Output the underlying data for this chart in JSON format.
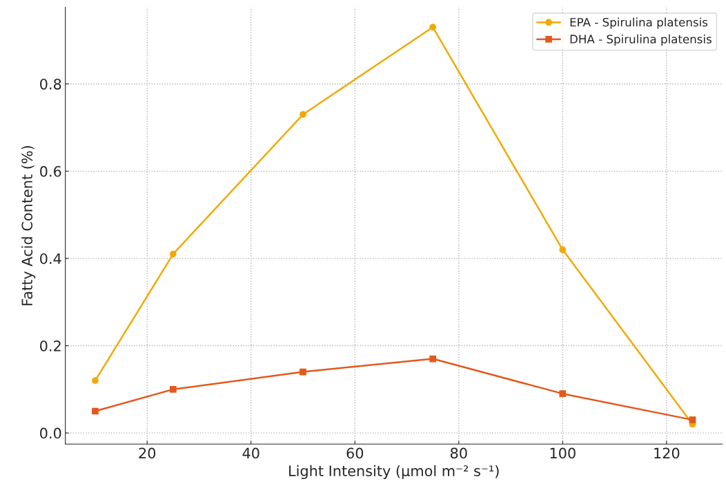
{
  "chart_data": {
    "type": "line",
    "xlabel": "Light Intensity (µmol m⁻² s⁻¹)",
    "ylabel": "Fatty Acid Content (%)",
    "x": [
      10,
      25,
      50,
      75,
      100,
      125
    ],
    "series": [
      {
        "name": "EPA - Spirulina platensis",
        "color": "#f2a900",
        "marker": "circle",
        "values": [
          0.12,
          0.41,
          0.73,
          0.93,
          0.42,
          0.02
        ]
      },
      {
        "name": "DHA - Spirulina platensis",
        "color": "#e4581c",
        "marker": "square",
        "values": [
          0.05,
          0.1,
          0.14,
          0.17,
          0.09,
          0.03
        ]
      }
    ],
    "xlim": [
      4.25,
      130.75
    ],
    "xticks": [
      20,
      40,
      60,
      80,
      100,
      120
    ],
    "ylim": [
      -0.0255,
      0.9755
    ],
    "yticks": [
      {
        "value": 0,
        "label": "0.0"
      },
      0.2,
      0.4,
      0.6,
      0.8
    ],
    "grid": true,
    "legend": "top right",
    "line_style": "solid"
  }
}
